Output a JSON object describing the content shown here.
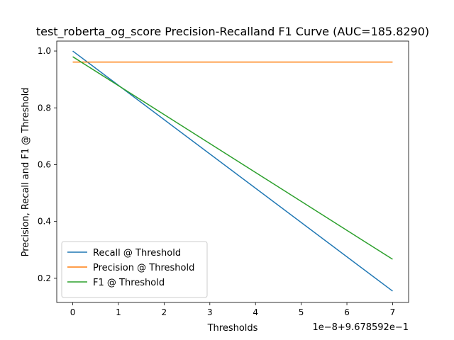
{
  "chart_data": {
    "type": "line",
    "title": "test_roberta_og_score Precision-Recalland F1  Curve (AUC=185.8290)",
    "xlabel": "Thresholds",
    "ylabel": "Precision, Recall and F1 @ Threshold",
    "x_offset_text": "1e−8+9.678592e−1",
    "x": [
      0,
      7
    ],
    "xlim": [
      -0.35,
      7.35
    ],
    "ylim": [
      0.115,
      1.035
    ],
    "x_ticks": [
      0,
      1,
      2,
      3,
      4,
      5,
      6,
      7
    ],
    "x_tick_labels": [
      "0",
      "1",
      "2",
      "3",
      "4",
      "5",
      "6",
      "7"
    ],
    "y_ticks": [
      0.2,
      0.4,
      0.6,
      0.8,
      1.0
    ],
    "y_tick_labels": [
      "0.2",
      "0.4",
      "0.6",
      "0.8",
      "1.0"
    ],
    "grid": false,
    "legend_position": "lower-left",
    "series": [
      {
        "name": "Recall @ Threshold",
        "color": "#1f77b4",
        "values": [
          1.0,
          0.155
        ]
      },
      {
        "name": "Precision @ Threshold",
        "color": "#ff7f0e",
        "values": [
          0.961,
          0.961
        ]
      },
      {
        "name": "F1 @ Threshold",
        "color": "#2ca02c",
        "values": [
          0.98,
          0.267
        ]
      }
    ]
  }
}
